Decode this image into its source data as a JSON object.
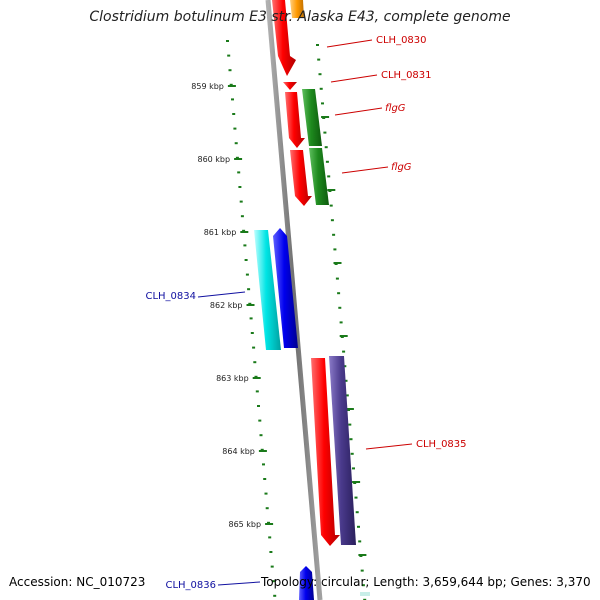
{
  "title": "Clostridium botulinum E3 str. Alaska E43, complete genome",
  "footer": {
    "accession": "Accession: NC_010723",
    "topology": "Topology: circular; Length: 3,659,644 bp; Genes: 3,370"
  },
  "ticks": [
    {
      "label": "859 kbp"
    },
    {
      "label": "860 kbp"
    },
    {
      "label": "861 kbp"
    },
    {
      "label": "862 kbp"
    },
    {
      "label": "863 kbp"
    },
    {
      "label": "864 kbp"
    },
    {
      "label": "865 kbp"
    }
  ],
  "genes": [
    {
      "name": "CLH_0830",
      "strand": "+"
    },
    {
      "name": "CLH_0831",
      "strand": "+"
    },
    {
      "name": "flgG",
      "strand": "+"
    },
    {
      "name": "flgG",
      "strand": "+"
    },
    {
      "name": "CLH_0834",
      "strand": "-"
    },
    {
      "name": "CLH_0835",
      "strand": "+"
    },
    {
      "name": "CLH_0836",
      "strand": "-"
    }
  ],
  "colors": {
    "cds": "#ff0000",
    "forward_label": "#cc0000",
    "reverse_label": "#1010a0",
    "gene_green": "#1e8a1e",
    "gene_blue": "#0000ee",
    "gene_cyan": "#00e5e5",
    "gene_purple": "#4a3a8c",
    "gene_orange": "#ff9900",
    "backbone": "#808080",
    "ticks": "#1a7a1a"
  }
}
